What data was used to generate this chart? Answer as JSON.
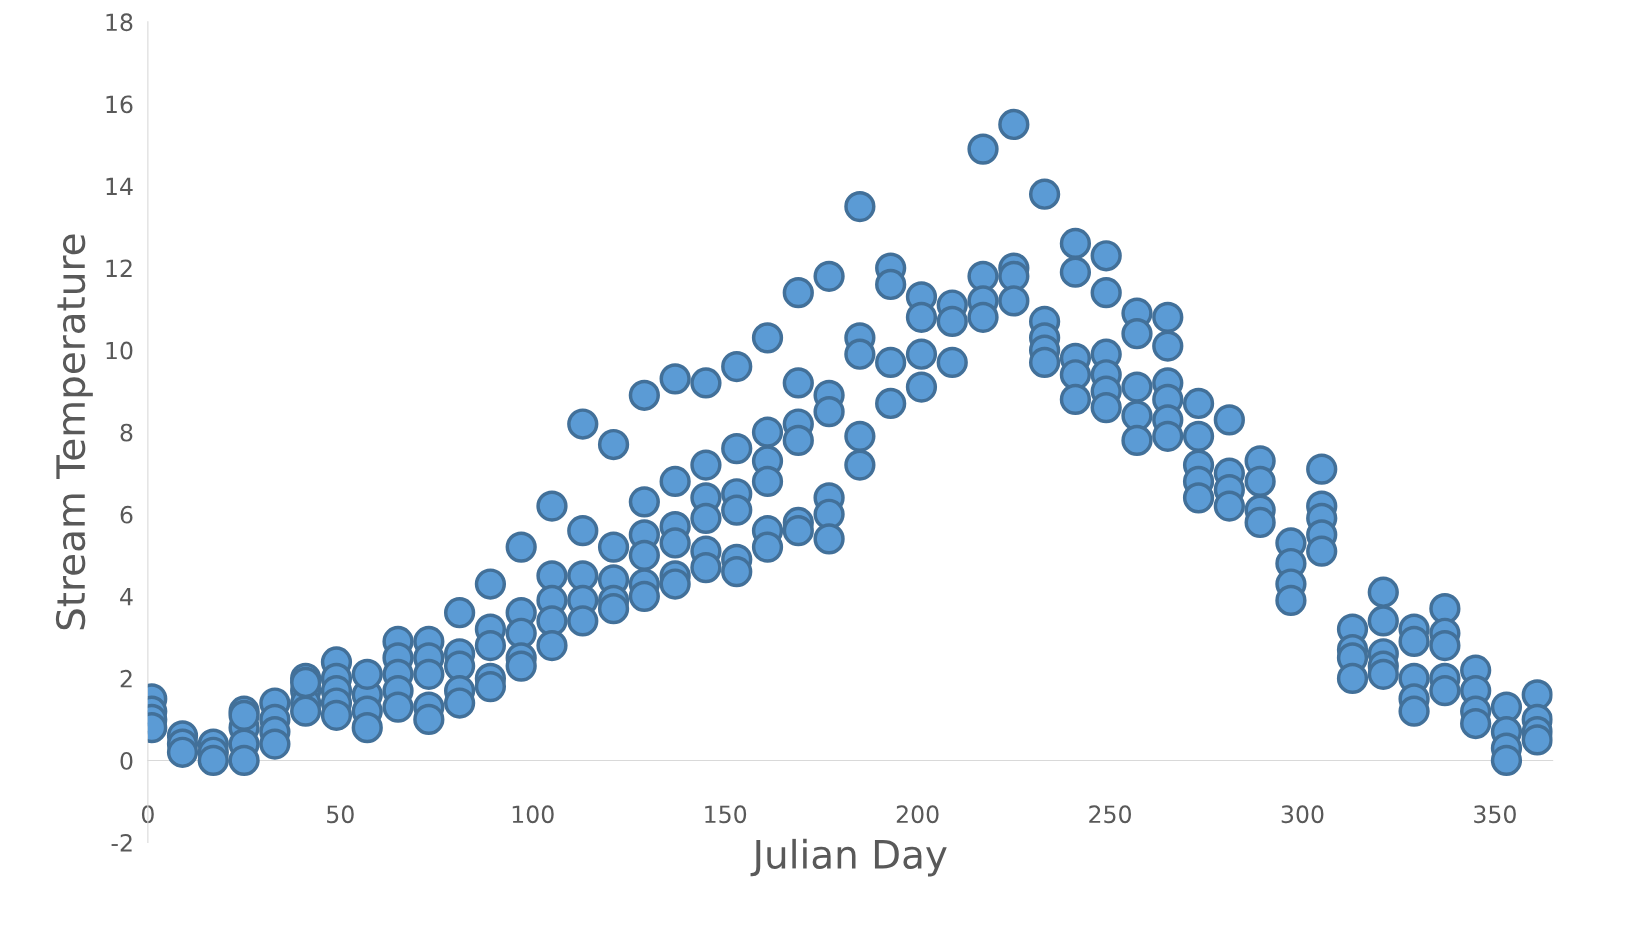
{
  "chart_data": {
    "type": "scatter",
    "xlabel": "Julian Day",
    "ylabel": "Stream Temperature",
    "xlim": [
      0,
      365
    ],
    "xticks": [
      0,
      50,
      100,
      150,
      200,
      250,
      300,
      350
    ],
    "ylim": [
      -2,
      18
    ],
    "yticks": [
      -2,
      0,
      2,
      4,
      6,
      8,
      10,
      12,
      14,
      16,
      18
    ],
    "grid": false,
    "marker": "circle",
    "series": [
      {
        "color": "#5b9bd5",
        "x": [
          1,
          1,
          1,
          1,
          9,
          9,
          9,
          17,
          17,
          17,
          25,
          25,
          25,
          25,
          25,
          33,
          33,
          33,
          33,
          41,
          41,
          41,
          41,
          41,
          49,
          49,
          49,
          49,
          49,
          57,
          57,
          57,
          57,
          65,
          65,
          65,
          65,
          65,
          73,
          73,
          73,
          73,
          73,
          81,
          81,
          81,
          81,
          81,
          89,
          89,
          89,
          89,
          89,
          97,
          97,
          97,
          97,
          97,
          105,
          105,
          105,
          105,
          105,
          113,
          113,
          113,
          113,
          113,
          121,
          121,
          121,
          121,
          121,
          129,
          129,
          129,
          129,
          129,
          129,
          137,
          137,
          137,
          137,
          137,
          137,
          145,
          145,
          145,
          145,
          145,
          145,
          153,
          153,
          153,
          153,
          153,
          153,
          161,
          161,
          161,
          161,
          161,
          161,
          169,
          169,
          169,
          169,
          169,
          169,
          177,
          177,
          177,
          177,
          177,
          177,
          185,
          185,
          185,
          185,
          185,
          193,
          193,
          193,
          193,
          201,
          201,
          201,
          201,
          209,
          209,
          209,
          217,
          217,
          217,
          217,
          225,
          225,
          225,
          225,
          233,
          233,
          233,
          233,
          233,
          241,
          241,
          241,
          241,
          241,
          249,
          249,
          249,
          249,
          249,
          249,
          257,
          257,
          257,
          257,
          257,
          265,
          265,
          265,
          265,
          265,
          265,
          273,
          273,
          273,
          273,
          273,
          281,
          281,
          281,
          281,
          289,
          289,
          289,
          289,
          297,
          297,
          297,
          297,
          305,
          305,
          305,
          305,
          305,
          313,
          313,
          313,
          313,
          321,
          321,
          321,
          321,
          321,
          329,
          329,
          329,
          329,
          329,
          337,
          337,
          337,
          337,
          337,
          345,
          345,
          345,
          345,
          353,
          353,
          353,
          353,
          361,
          361,
          361,
          361
        ],
        "values": [
          1.5,
          1.2,
          1.0,
          0.8,
          0.6,
          0.4,
          0.2,
          0.4,
          0.2,
          0.0,
          1.2,
          0.8,
          0.4,
          0.0,
          1.1,
          1.4,
          1.0,
          0.7,
          0.4,
          2.0,
          1.7,
          1.4,
          1.2,
          1.9,
          2.4,
          2.0,
          1.7,
          1.4,
          1.1,
          1.6,
          1.2,
          0.8,
          2.1,
          2.9,
          2.5,
          2.1,
          1.7,
          1.3,
          2.9,
          2.5,
          2.1,
          1.3,
          1.0,
          3.6,
          2.6,
          2.3,
          1.7,
          1.4,
          4.3,
          3.2,
          2.8,
          2.0,
          1.8,
          5.2,
          3.6,
          3.1,
          2.5,
          2.3,
          6.2,
          4.5,
          3.9,
          3.4,
          2.8,
          8.2,
          5.6,
          4.5,
          3.9,
          3.4,
          7.7,
          5.2,
          4.4,
          3.9,
          3.7,
          8.9,
          6.3,
          5.5,
          5.0,
          4.3,
          4.0,
          9.3,
          6.8,
          5.7,
          5.3,
          4.5,
          4.3,
          9.2,
          7.2,
          6.4,
          5.9,
          5.1,
          4.7,
          9.6,
          7.6,
          6.5,
          6.1,
          4.9,
          4.6,
          10.3,
          8.0,
          7.3,
          6.8,
          5.6,
          5.2,
          11.4,
          9.2,
          8.2,
          7.8,
          5.8,
          5.6,
          11.8,
          8.9,
          8.5,
          6.4,
          6.0,
          5.4,
          13.5,
          10.3,
          9.9,
          7.9,
          7.2,
          12.0,
          11.6,
          9.7,
          8.7,
          11.3,
          10.8,
          9.9,
          9.1,
          11.1,
          10.7,
          9.7,
          14.9,
          11.8,
          11.2,
          10.8,
          15.5,
          12.0,
          11.8,
          11.2,
          13.8,
          10.7,
          10.3,
          10.0,
          9.7,
          12.6,
          11.9,
          9.8,
          9.4,
          8.8,
          12.3,
          11.4,
          9.9,
          9.4,
          9.0,
          8.6,
          10.9,
          10.4,
          9.1,
          8.4,
          7.8,
          10.8,
          10.1,
          9.2,
          8.8,
          8.3,
          7.9,
          8.7,
          7.9,
          7.2,
          6.8,
          6.4,
          8.3,
          7.0,
          6.6,
          6.2,
          7.3,
          6.8,
          6.1,
          5.8,
          5.3,
          4.8,
          4.3,
          3.9,
          7.1,
          6.2,
          5.9,
          5.5,
          5.1,
          3.2,
          2.7,
          2.5,
          2.0,
          4.1,
          3.4,
          2.6,
          2.3,
          2.1,
          3.2,
          2.9,
          2.0,
          1.5,
          1.2,
          3.7,
          3.1,
          2.8,
          2.0,
          1.7,
          2.2,
          1.7,
          1.2,
          0.9,
          1.3,
          0.7,
          0.3,
          0.0,
          1.6,
          1.0,
          0.7,
          0.5
        ]
      }
    ]
  }
}
